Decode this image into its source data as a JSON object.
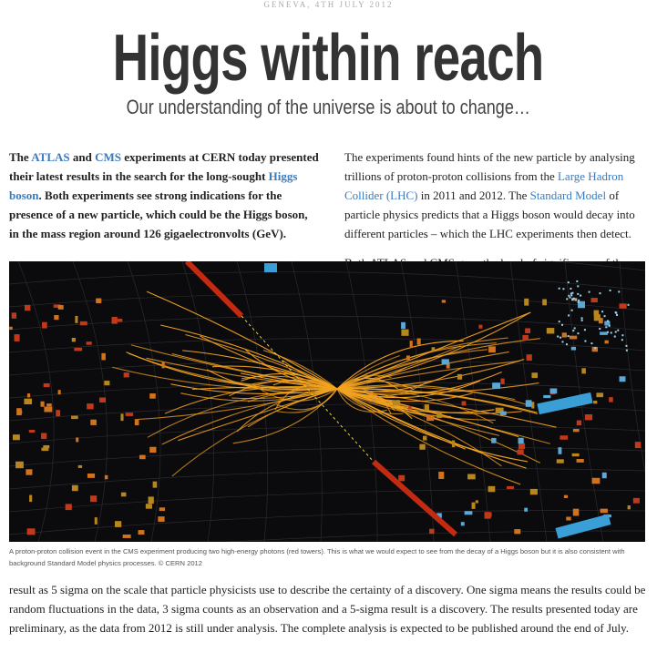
{
  "header": {
    "dateline": "GENEVA, 4TH JULY 2012",
    "title": "Higgs within reach",
    "subtitle": "Our understanding of the universe is about to change…"
  },
  "left_column": {
    "segments": [
      "The ",
      {
        "link": "ATLAS"
      },
      " and ",
      {
        "link": "CMS"
      },
      " experiments at CERN today presented their latest results in the search for the long-sought ",
      {
        "link": "Higgs boson"
      },
      ". Both experiments see strong indications for the presence of a new particle, which could be the Higgs boson, in the mass region around 126 gigaelectronvolts (GeV)."
    ]
  },
  "right_column": {
    "paragraphs": [
      {
        "segments": [
          "The experiments found hints of the new particle by analysing trillions of proton-proton collisions from the ",
          {
            "link": "Large Hadron Collider (LHC)"
          },
          " in 2011 and 2012. The ",
          {
            "link": "Standard Model"
          },
          " of particle physics predicts that a Higgs boson would decay into different particles – which the LHC experiments then detect."
        ]
      },
      {
        "segments": [
          "Both ATLAS and CMS gave the level of significance of the"
        ]
      }
    ]
  },
  "figure": {
    "caption": "A proton-proton collision event in the CMS experiment producing two high-energy photons (red towers). This is what we would expect to see from the decay of a Higgs boson but it is also consistent with background Standard Model physics processes. © CERN 2012"
  },
  "continuation": {
    "segments": [
      "result as 5 sigma on the scale that particle physicists use to describe the certainty of a discovery. One sigma means the results could be random fluctuations in the data, 3 sigma counts as an observation and a 5-sigma result is a discovery. The results presented today are preliminary, as the data from 2012 is still under analysis. The complete analysis is expected to be published around the end of July."
    ]
  }
}
